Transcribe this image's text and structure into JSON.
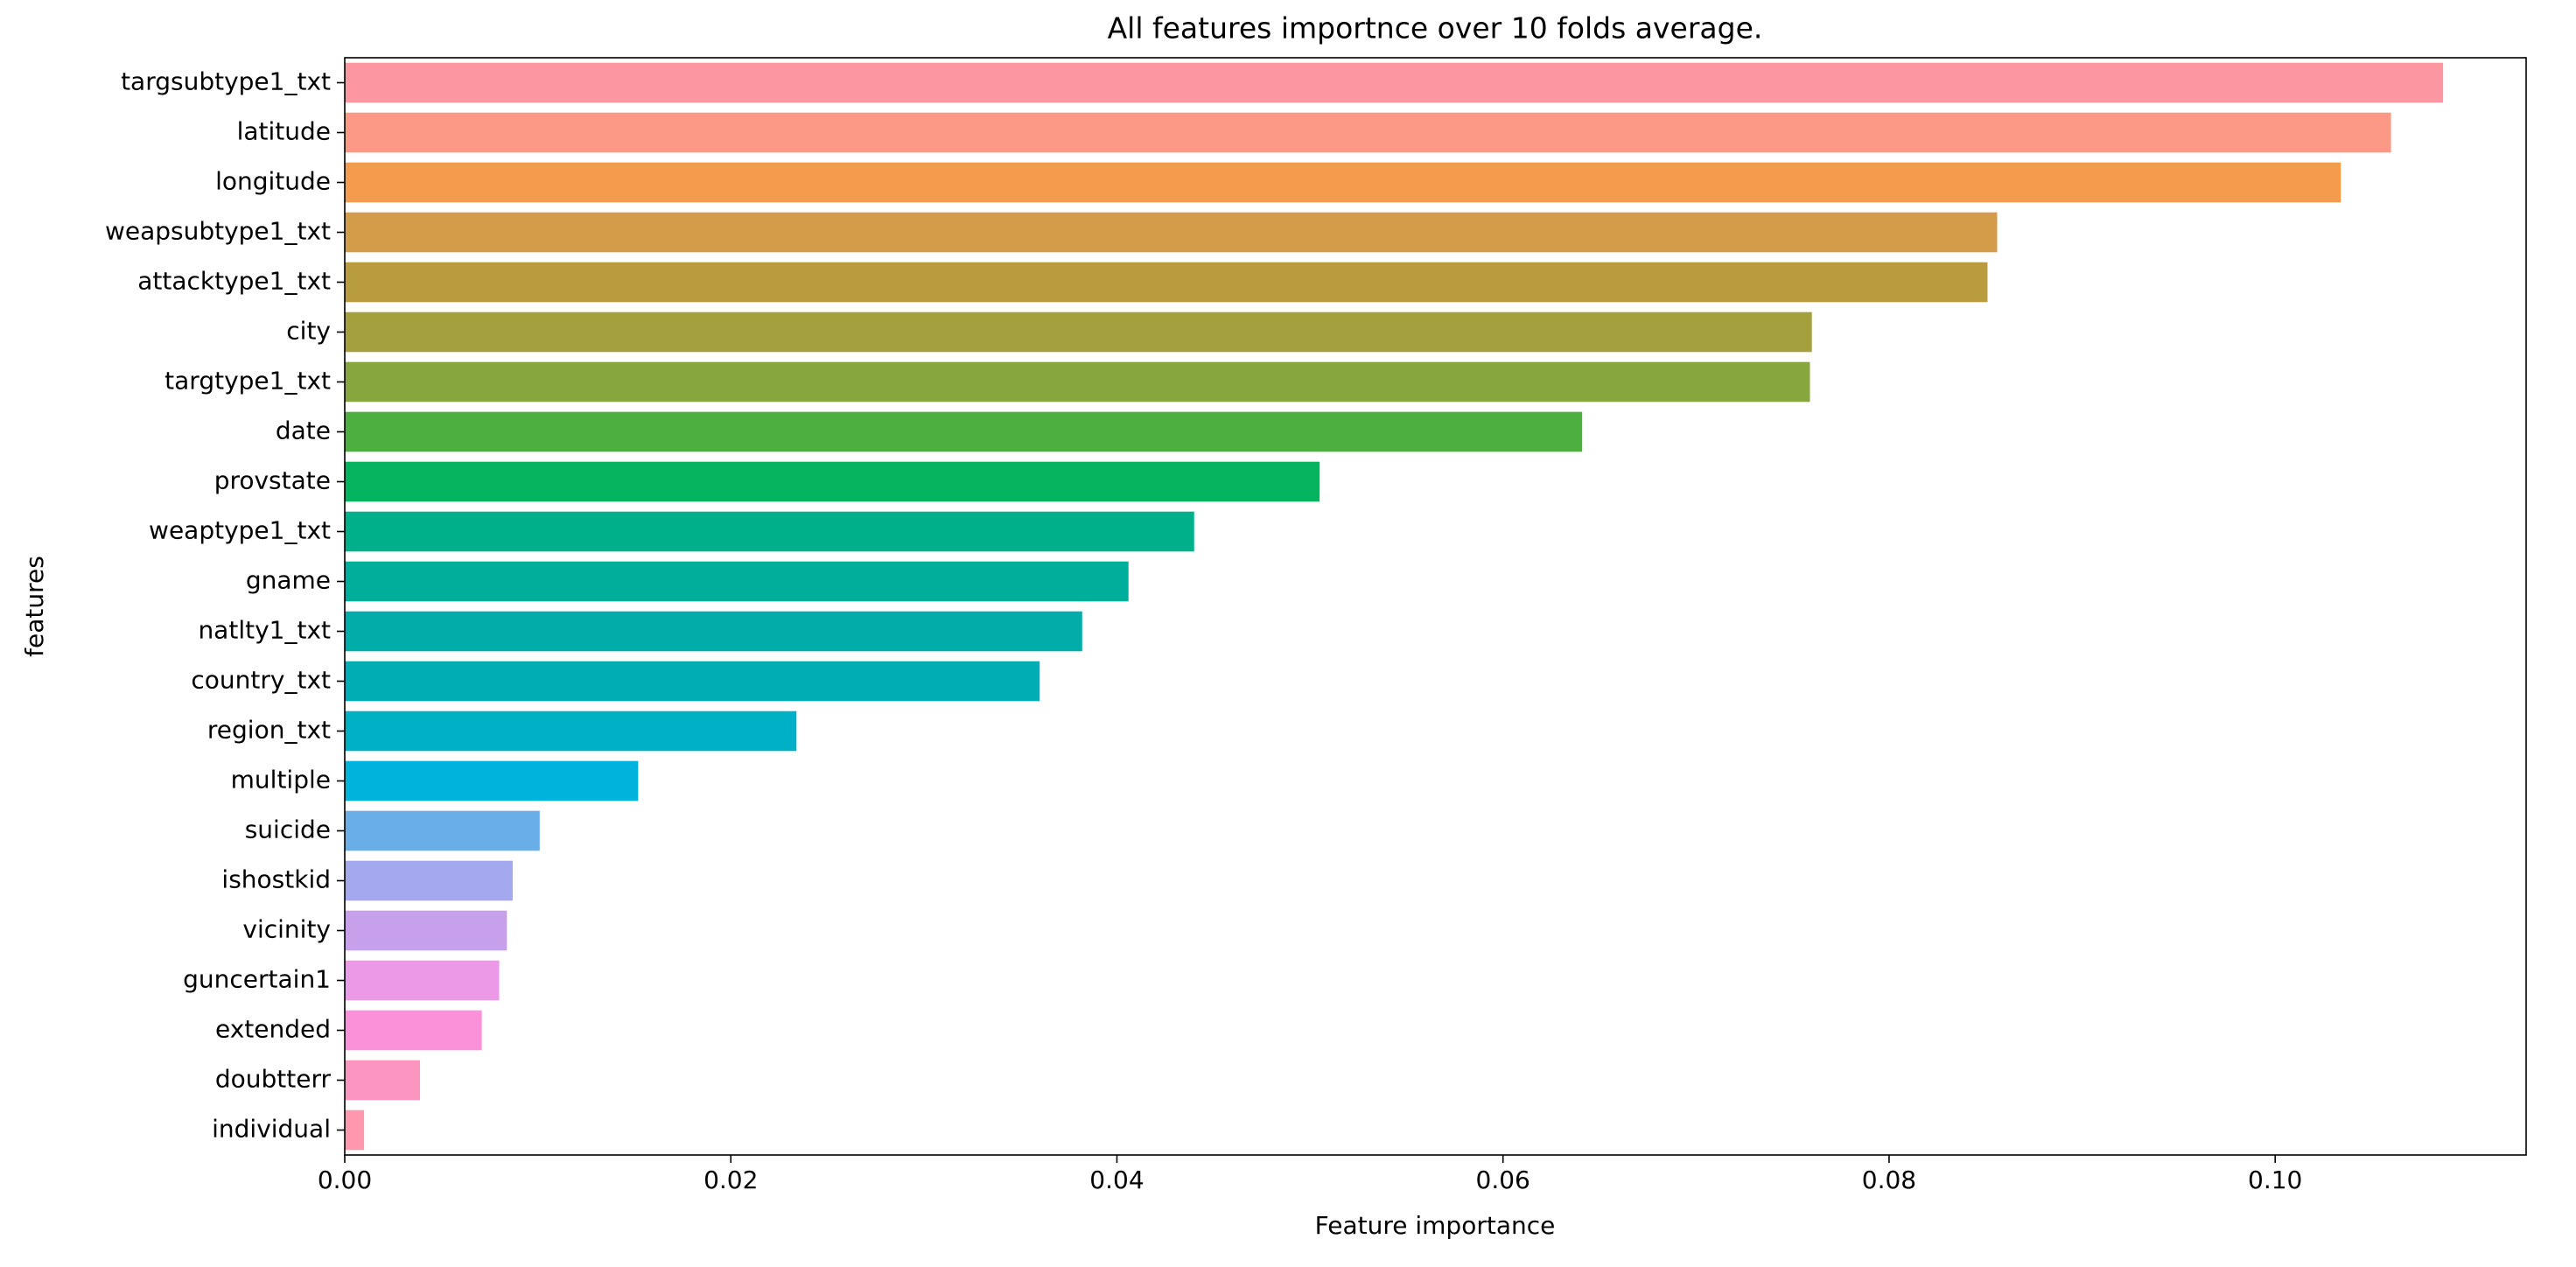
{
  "chart_data": {
    "type": "barh",
    "title": "All features importnce over 10 folds average.",
    "x_label": "Feature importance",
    "y_label": "features",
    "categories": [
      "targsubtype1_txt",
      "latitude",
      "longitude",
      "weapsubtype1_txt",
      "attacktype1_txt",
      "city",
      "targtype1_txt",
      "date",
      "provstate",
      "weaptype1_txt",
      "gname",
      "natlty1_txt",
      "country_txt",
      "region_txt",
      "multiple",
      "suicide",
      "ishostkid",
      "vicinity",
      "guncertain1",
      "extended",
      "doubtterr",
      "individual"
    ],
    "values": [
      0.1087,
      0.106,
      0.1034,
      0.0856,
      0.0851,
      0.076,
      0.0759,
      0.0641,
      0.0505,
      0.044,
      0.0406,
      0.0382,
      0.036,
      0.0234,
      0.0152,
      0.0101,
      0.0087,
      0.0084,
      0.008,
      0.0071,
      0.0039,
      0.001
    ],
    "colors": [
      "#fc97a1",
      "#fb9886",
      "#f49b4e",
      "#d49b48",
      "#b89c3e",
      "#a3a03d",
      "#87a63e",
      "#4daf3f",
      "#06b35f",
      "#00b08a",
      "#00ae9c",
      "#00ada8",
      "#00adb5",
      "#00b1c6",
      "#00b3dc",
      "#6aaee8",
      "#a4a8ef",
      "#c7a0eb",
      "#ec99e8",
      "#fb92d9",
      "#fc95c0",
      "#ff97ae"
    ],
    "xlim": [
      0,
      0.113
    ],
    "xticks": [
      {
        "value": 0,
        "label": "0.00"
      },
      {
        "value": 0.02,
        "label": "0.02"
      },
      {
        "value": 0.04,
        "label": "0.04"
      },
      {
        "value": 0.06,
        "label": "0.06"
      },
      {
        "value": 0.08,
        "label": "0.08"
      },
      {
        "value": 0.1,
        "label": "0.10"
      }
    ]
  }
}
